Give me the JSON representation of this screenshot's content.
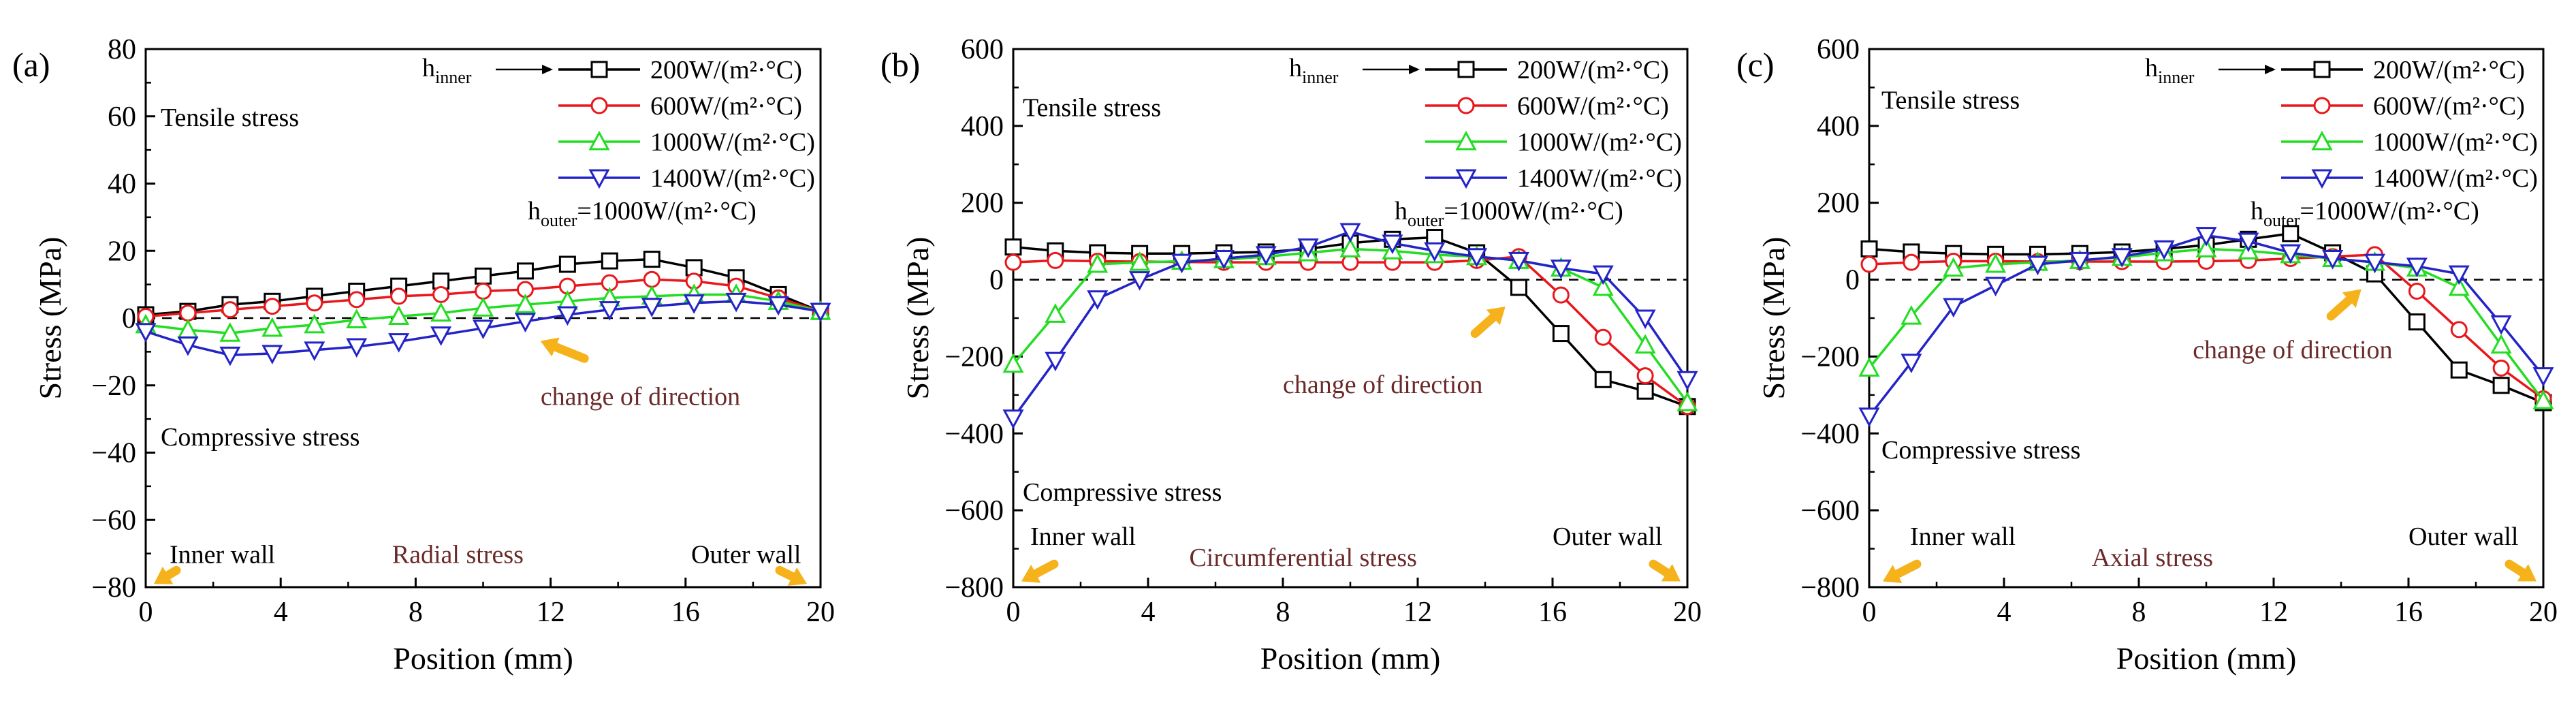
{
  "colors": {
    "h200": "#000000",
    "h600": "#e8171c",
    "h1000": "#22dd22",
    "h1400": "#2323c8",
    "arrow": "#f5b21a",
    "annotation": "#6b2a2a",
    "zero_line": "#000000"
  },
  "chart_data": [
    {
      "type": "line",
      "panel_label": "(a)",
      "xlabel": "Position (mm)",
      "ylabel": "Stress (MPa)",
      "xlim": [
        0,
        20
      ],
      "ylim": [
        -80,
        80
      ],
      "xticks": [
        0,
        4,
        8,
        12,
        16,
        20
      ],
      "yticks": [
        -80,
        -60,
        -40,
        -20,
        0,
        20,
        40,
        60,
        80
      ],
      "x": [
        0,
        1.25,
        2.5,
        3.75,
        5,
        6.25,
        7.5,
        8.75,
        10,
        11.25,
        12.5,
        13.75,
        15,
        16.25,
        17.5,
        18.75,
        20
      ],
      "series": [
        {
          "name": "200W/(m²·°C)",
          "marker": "square",
          "color_key": "h200",
          "values": [
            1,
            2,
            4,
            5,
            6.5,
            8,
            9.5,
            11,
            12.5,
            14,
            16,
            17,
            17.5,
            15,
            12,
            7,
            2
          ]
        },
        {
          "name": "600W/(m²·°C)",
          "marker": "circle",
          "color_key": "h600",
          "values": [
            0.5,
            1.5,
            2.5,
            3.5,
            4.5,
            5.5,
            6.5,
            7,
            8,
            8.5,
            9.5,
            10.5,
            11.5,
            11,
            9.5,
            6,
            2
          ]
        },
        {
          "name": "1000W/(m²·°C)",
          "marker": "triangle-up",
          "color_key": "h1000",
          "values": [
            -2,
            -3.5,
            -4.5,
            -3,
            -2,
            -0.5,
            0.5,
            1.5,
            3,
            4,
            5,
            6,
            6.5,
            7,
            7,
            5,
            2
          ]
        },
        {
          "name": "1400W/(m²·°C)",
          "marker": "triangle-down",
          "color_key": "h1400",
          "values": [
            -4,
            -8,
            -11,
            -10.5,
            -9.5,
            -8.5,
            -7,
            -5,
            -3,
            -1,
            1,
            2.5,
            3.5,
            4.5,
            5,
            4,
            2
          ]
        }
      ],
      "legend": {
        "prefix": "h",
        "prefix_sub": "inner",
        "footer": "h",
        "footer_sub": "outer",
        "footer_value": "=1000W/(m²·°C)"
      },
      "annotations": {
        "tensile": "Tensile stress",
        "compressive": "Compressive stress",
        "change": "change of direction",
        "inner_wall": "Inner wall",
        "outer_wall": "Outer wall",
        "stress_type": "Radial stress"
      }
    },
    {
      "type": "line",
      "panel_label": "(b)",
      "xlabel": "Position (mm)",
      "ylabel": "Stress (MPa)",
      "xlim": [
        0,
        20
      ],
      "ylim": [
        -800,
        600
      ],
      "xticks": [
        0,
        4,
        8,
        12,
        16,
        20
      ],
      "yticks": [
        -800,
        -600,
        -400,
        -200,
        0,
        200,
        400,
        600
      ],
      "x": [
        0,
        1.25,
        2.5,
        3.75,
        5,
        6.25,
        7.5,
        8.75,
        10,
        11.25,
        12.5,
        13.75,
        15,
        16.25,
        17.5,
        18.75,
        20
      ],
      "series": [
        {
          "name": "200W/(m²·°C)",
          "marker": "square",
          "color_key": "h200",
          "values": [
            85,
            75,
            70,
            68,
            68,
            70,
            72,
            80,
            95,
            105,
            110,
            70,
            -20,
            -140,
            -260,
            -290,
            -330
          ]
        },
        {
          "name": "600W/(m²·°C)",
          "marker": "circle",
          "color_key": "h600",
          "values": [
            45,
            50,
            48,
            47,
            46,
            45,
            45,
            45,
            45,
            45,
            45,
            50,
            60,
            -40,
            -150,
            -250,
            -330
          ]
        },
        {
          "name": "1000W/(m²·°C)",
          "marker": "triangle-up",
          "color_key": "h1000",
          "values": [
            -220,
            -90,
            40,
            45,
            48,
            52,
            60,
            70,
            80,
            75,
            65,
            60,
            50,
            30,
            -20,
            -170,
            -320
          ]
        },
        {
          "name": "1400W/(m²·°C)",
          "marker": "triangle-down",
          "color_key": "h1400",
          "values": [
            -360,
            -210,
            -50,
            0,
            45,
            55,
            65,
            85,
            125,
            95,
            75,
            60,
            50,
            30,
            15,
            -100,
            -260
          ]
        }
      ],
      "legend": {
        "prefix": "h",
        "prefix_sub": "inner",
        "footer": "h",
        "footer_sub": "outer",
        "footer_value": "=1000W/(m²·°C)"
      },
      "annotations": {
        "tensile": "Tensile stress",
        "compressive": "Compressive stress",
        "change": "change of direction",
        "inner_wall": "Inner wall",
        "outer_wall": "Outer wall",
        "stress_type": "Circumferential stress"
      }
    },
    {
      "type": "line",
      "panel_label": "(c)",
      "xlabel": "Position (mm)",
      "ylabel": "Stress (MPa)",
      "xlim": [
        0,
        20
      ],
      "ylim": [
        -800,
        600
      ],
      "xticks": [
        0,
        4,
        8,
        12,
        16,
        20
      ],
      "yticks": [
        -800,
        -600,
        -400,
        -200,
        0,
        200,
        400,
        600
      ],
      "x": [
        0,
        1.25,
        2.5,
        3.75,
        5,
        6.25,
        7.5,
        8.75,
        10,
        11.25,
        12.5,
        13.75,
        15,
        16.25,
        17.5,
        18.75,
        20
      ],
      "series": [
        {
          "name": "200W/(m²·°C)",
          "marker": "square",
          "color_key": "h200",
          "values": [
            80,
            72,
            68,
            66,
            66,
            68,
            72,
            80,
            90,
            105,
            120,
            70,
            15,
            -110,
            -235,
            -275,
            -320
          ]
        },
        {
          "name": "600W/(m²·°C)",
          "marker": "circle",
          "color_key": "h600",
          "values": [
            40,
            45,
            48,
            48,
            47,
            47,
            47,
            47,
            48,
            50,
            55,
            60,
            65,
            -30,
            -130,
            -230,
            -310
          ]
        },
        {
          "name": "1000W/(m²·°C)",
          "marker": "triangle-up",
          "color_key": "h1000",
          "values": [
            -230,
            -95,
            30,
            40,
            45,
            50,
            58,
            70,
            80,
            75,
            65,
            55,
            45,
            30,
            -20,
            -170,
            -315
          ]
        },
        {
          "name": "1400W/(m²·°C)",
          "marker": "triangle-down",
          "color_key": "h1400",
          "values": [
            -355,
            -215,
            -70,
            -15,
            40,
            50,
            60,
            80,
            115,
            100,
            70,
            55,
            45,
            35,
            15,
            -115,
            -250
          ]
        }
      ],
      "legend": {
        "prefix": "h",
        "prefix_sub": "inner",
        "footer": "h",
        "footer_sub": "outer",
        "footer_value": "=1000W/(m²·°C)"
      },
      "annotations": {
        "tensile": "Tensile stress",
        "compressive": "Compressive stress",
        "change": "change of direction",
        "inner_wall": "Inner wall",
        "outer_wall": "Outer wall",
        "stress_type": "Axial stress"
      }
    }
  ]
}
